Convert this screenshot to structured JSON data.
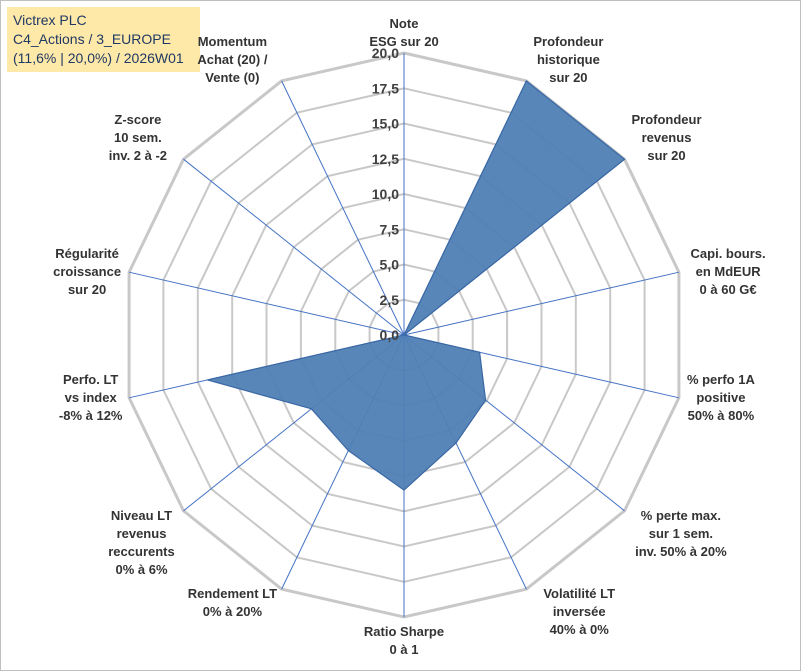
{
  "header": {
    "line1": "Victrex PLC",
    "line2": "C4_Actions / 3_EUROPE",
    "line3": "(11,6% | 20,0%) / 2026W01"
  },
  "colors": {
    "fill": "#4f7fb5",
    "stroke": "#3a68a4",
    "grid": "#c8c8c8",
    "spoke": "#4472c4",
    "title_bg": "#ffe9a8"
  },
  "chart_data": {
    "type": "radar",
    "rmax": 20,
    "tick_step": 2.5,
    "tick_labels": [
      "0,0",
      "2,5",
      "5,0",
      "7,5",
      "10,0",
      "12,5",
      "15,0",
      "17,5",
      "20,0"
    ],
    "categories": [
      [
        "Note",
        "ESG sur 20"
      ],
      [
        "Profondeur",
        "historique",
        "sur 20"
      ],
      [
        "Profondeur",
        "revenus",
        "sur 20"
      ],
      [
        "Capi. bours.",
        "en MdEUR",
        "0 à 60 G€"
      ],
      [
        "% perfo 1A",
        "positive",
        "50% à 80%"
      ],
      [
        "% perte max.",
        "sur 1 sem.",
        "inv. 50% à 20%"
      ],
      [
        "Volatilité LT",
        "inversée",
        "40% à 0%"
      ],
      [
        "Ratio Sharpe",
        "0 à 1"
      ],
      [
        "Rendement LT",
        "0% à 20%"
      ],
      [
        "Niveau LT",
        "revenus",
        "reccurents",
        "0% à 6%"
      ],
      [
        "Perfo. LT",
        "vs index",
        "-8% à 12%"
      ],
      [
        "Régularité",
        "croissance",
        "sur 20"
      ],
      [
        "Z-score",
        "10 sem.",
        "inv. 2 à -2"
      ],
      [
        "Momentum",
        "Achat (20) /",
        "Vente (0)"
      ]
    ],
    "series": [
      {
        "values": [
          0,
          20,
          20,
          0,
          5.5,
          7.4,
          8.5,
          11.0,
          9.1,
          8.4,
          14.3,
          0,
          0,
          0
        ]
      }
    ]
  }
}
